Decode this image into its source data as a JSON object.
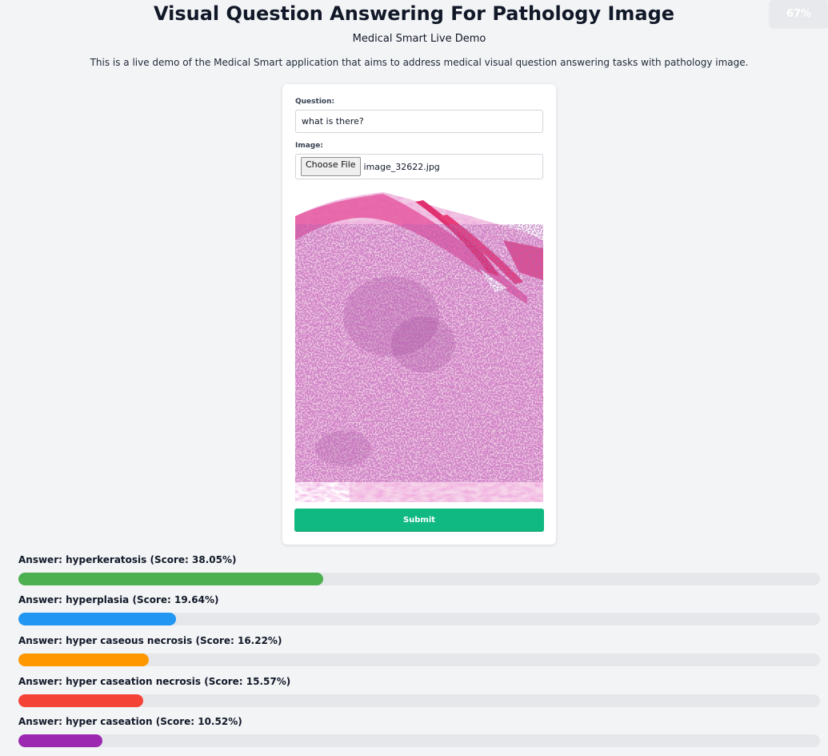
{
  "browser": {
    "zoom_level": "67%"
  },
  "header": {
    "title": "Visual Question Answering For Pathology Image",
    "subtitle": "Medical Smart Live Demo",
    "description": "This is a live demo of the Medical Smart application that aims to address medical visual question answering tasks with pathology image."
  },
  "form": {
    "question_label": "Question:",
    "question_value": "what is there?",
    "image_label": "Image:",
    "choose_file_label": "Choose File",
    "file_name": "image_32622.jpg",
    "submit_label": "Submit"
  },
  "answers": [
    {
      "prefix": "Answer:",
      "answer": "hyperkeratosis",
      "score_text": "(Score: 38.05%)",
      "score": 38.05,
      "color": "#4caf50"
    },
    {
      "prefix": "Answer:",
      "answer": "hyperplasia",
      "score_text": "(Score: 19.64%)",
      "score": 19.64,
      "color": "#2196f3"
    },
    {
      "prefix": "Answer:",
      "answer": "hyper caseous necrosis",
      "score_text": "(Score: 16.22%)",
      "score": 16.22,
      "color": "#ff9800"
    },
    {
      "prefix": "Answer:",
      "answer": "hyper caseation necrosis",
      "score_text": "(Score: 15.57%)",
      "score": 15.57,
      "color": "#f44336"
    },
    {
      "prefix": "Answer:",
      "answer": "hyper caseation",
      "score_text": "(Score: 10.52%)",
      "score": 10.52,
      "color": "#9c27b0"
    }
  ]
}
